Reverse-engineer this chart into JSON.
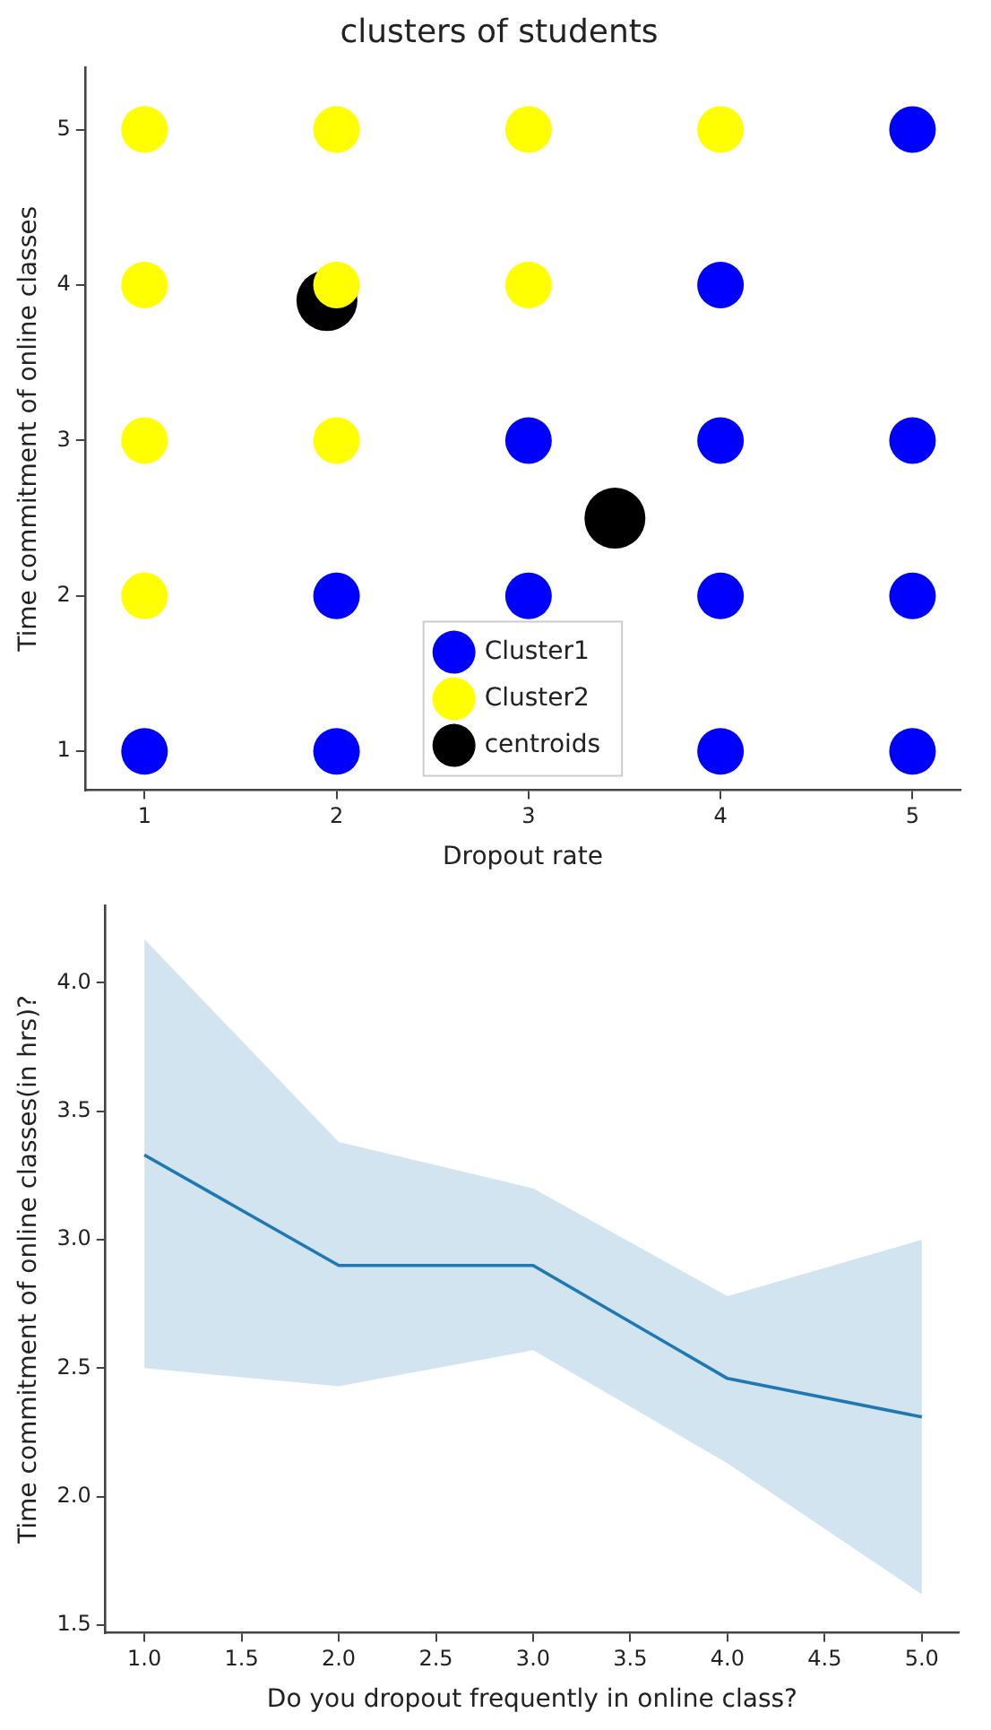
{
  "chart_data": [
    {
      "type": "scatter",
      "title": "clusters of students",
      "xlabel": "Dropout rate",
      "ylabel": "Time commitment of online classes",
      "xlim": [
        0.69,
        5.25
      ],
      "ylim": [
        0.75,
        5.4
      ],
      "xticks": [
        1,
        2,
        3,
        4,
        5
      ],
      "yticks": [
        1,
        2,
        3,
        4,
        5
      ],
      "grid": false,
      "legend": "bottom",
      "marker": "circle",
      "series": [
        {
          "name": "Cluster1",
          "color": "#0000ff",
          "x": [
            5,
            4,
            3,
            4,
            5,
            2,
            3,
            4,
            5,
            1,
            2,
            4,
            5
          ],
          "values": [
            5,
            4,
            3,
            3,
            3,
            2,
            2,
            2,
            2,
            1,
            1,
            1,
            1
          ]
        },
        {
          "name": "Cluster2",
          "color": "#ffff00",
          "x": [
            1,
            2,
            3,
            4,
            1,
            2,
            3,
            1,
            2,
            1
          ],
          "values": [
            5,
            5,
            5,
            5,
            4,
            4,
            4,
            3,
            3,
            2
          ]
        },
        {
          "name": "centroids",
          "color": "#000000",
          "x": [
            1.95,
            3.45
          ],
          "values": [
            3.9,
            2.5
          ]
        }
      ]
    },
    {
      "type": "line",
      "xlabel": "Do you dropout frequently in online class?",
      "ylabel": "Time commitment of online classes(in hrs)?",
      "xlim": [
        0.8,
        5.19
      ],
      "ylim": [
        1.47,
        4.3
      ],
      "xticks": [
        {
          "value": 1,
          "label": "1.0"
        },
        1.5,
        {
          "value": 2,
          "label": "2.0"
        },
        2.5,
        {
          "value": 3,
          "label": "3.0"
        },
        3.5,
        {
          "value": 4,
          "label": "4.0"
        },
        4.5,
        {
          "value": 5,
          "label": "5.0"
        }
      ],
      "yticks": [
        1.5,
        {
          "value": 2,
          "label": "2.0"
        },
        2.5,
        {
          "value": 3,
          "label": "3.0"
        },
        3.5,
        {
          "value": 4,
          "label": "4.0"
        }
      ],
      "grid": false,
      "marker": "none",
      "line_style": "solid",
      "series": [
        {
          "color": "#1f77b4",
          "x": [
            1,
            2,
            3,
            4,
            5
          ],
          "values": [
            3.33,
            2.9,
            2.9,
            2.46,
            2.31
          ],
          "lower": [
            2.5,
            2.43,
            2.57,
            2.13,
            1.62
          ],
          "upper": [
            4.17,
            3.38,
            3.2,
            2.78,
            3.0
          ]
        }
      ]
    }
  ]
}
